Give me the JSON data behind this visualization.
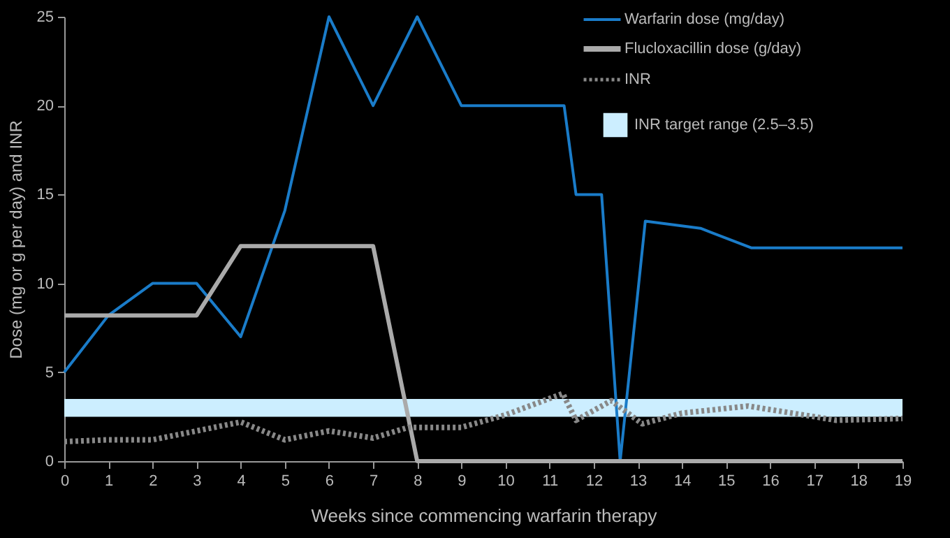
{
  "chart_data": {
    "type": "line",
    "xlabel": "Weeks since commencing warfarin therapy",
    "ylabel": "Dose (mg or g per day) and INR",
    "xlim": [
      0,
      19
    ],
    "xticks": [
      0,
      1,
      2,
      3,
      4,
      5,
      6,
      7,
      8,
      9,
      10,
      11,
      12,
      13,
      14,
      15,
      16,
      17,
      18,
      19
    ],
    "ylim": [
      0,
      25
    ],
    "yticks": [
      0,
      5,
      10,
      15,
      20,
      25
    ],
    "grid": false,
    "legend": "top right",
    "marker": "none",
    "series": [
      {
        "name": "Warfarin dose (mg/day)",
        "color": "#1a7cc9",
        "line_style": "solid",
        "x": [
          0,
          1,
          2,
          3,
          4,
          5,
          6,
          7,
          8,
          9,
          10,
          11,
          11.33,
          11.6,
          12.18,
          12.6,
          13.17,
          14.42,
          15.57,
          19
        ],
        "values": [
          5,
          8.2,
          10,
          10,
          7,
          14.1,
          25,
          20,
          25,
          20,
          20,
          20,
          20,
          15,
          15,
          0,
          13.5,
          13.1,
          12,
          12
        ]
      },
      {
        "name": "Flucloxacillin dose (g/day)",
        "color": "#aaaaaa",
        "line_style": "solid",
        "x": [
          0,
          3,
          4,
          7,
          8,
          19
        ],
        "values": [
          8.2,
          8.2,
          12.1,
          12.1,
          0,
          0
        ]
      },
      {
        "name": "INR",
        "color": "#888888",
        "line_style": "dotted",
        "x": [
          0,
          1,
          2,
          3,
          4,
          5,
          6,
          7,
          7.8,
          9,
          10,
          11.3,
          11.6,
          12.4,
          13.1,
          14,
          15.5,
          17,
          17.5,
          19
        ],
        "values": [
          1.1,
          1.2,
          1.2,
          1.7,
          2.2,
          1.2,
          1.7,
          1.3,
          1.9,
          1.9,
          2.6,
          3.8,
          2.3,
          3.4,
          2.1,
          2.7,
          3.1,
          2.5,
          2.3,
          2.4
        ]
      }
    ],
    "bands": [
      {
        "axis": "y",
        "from": 2.5,
        "to": 3.5,
        "label": "INR target range (2.5–3.5)",
        "color": "#cceeff"
      }
    ]
  }
}
